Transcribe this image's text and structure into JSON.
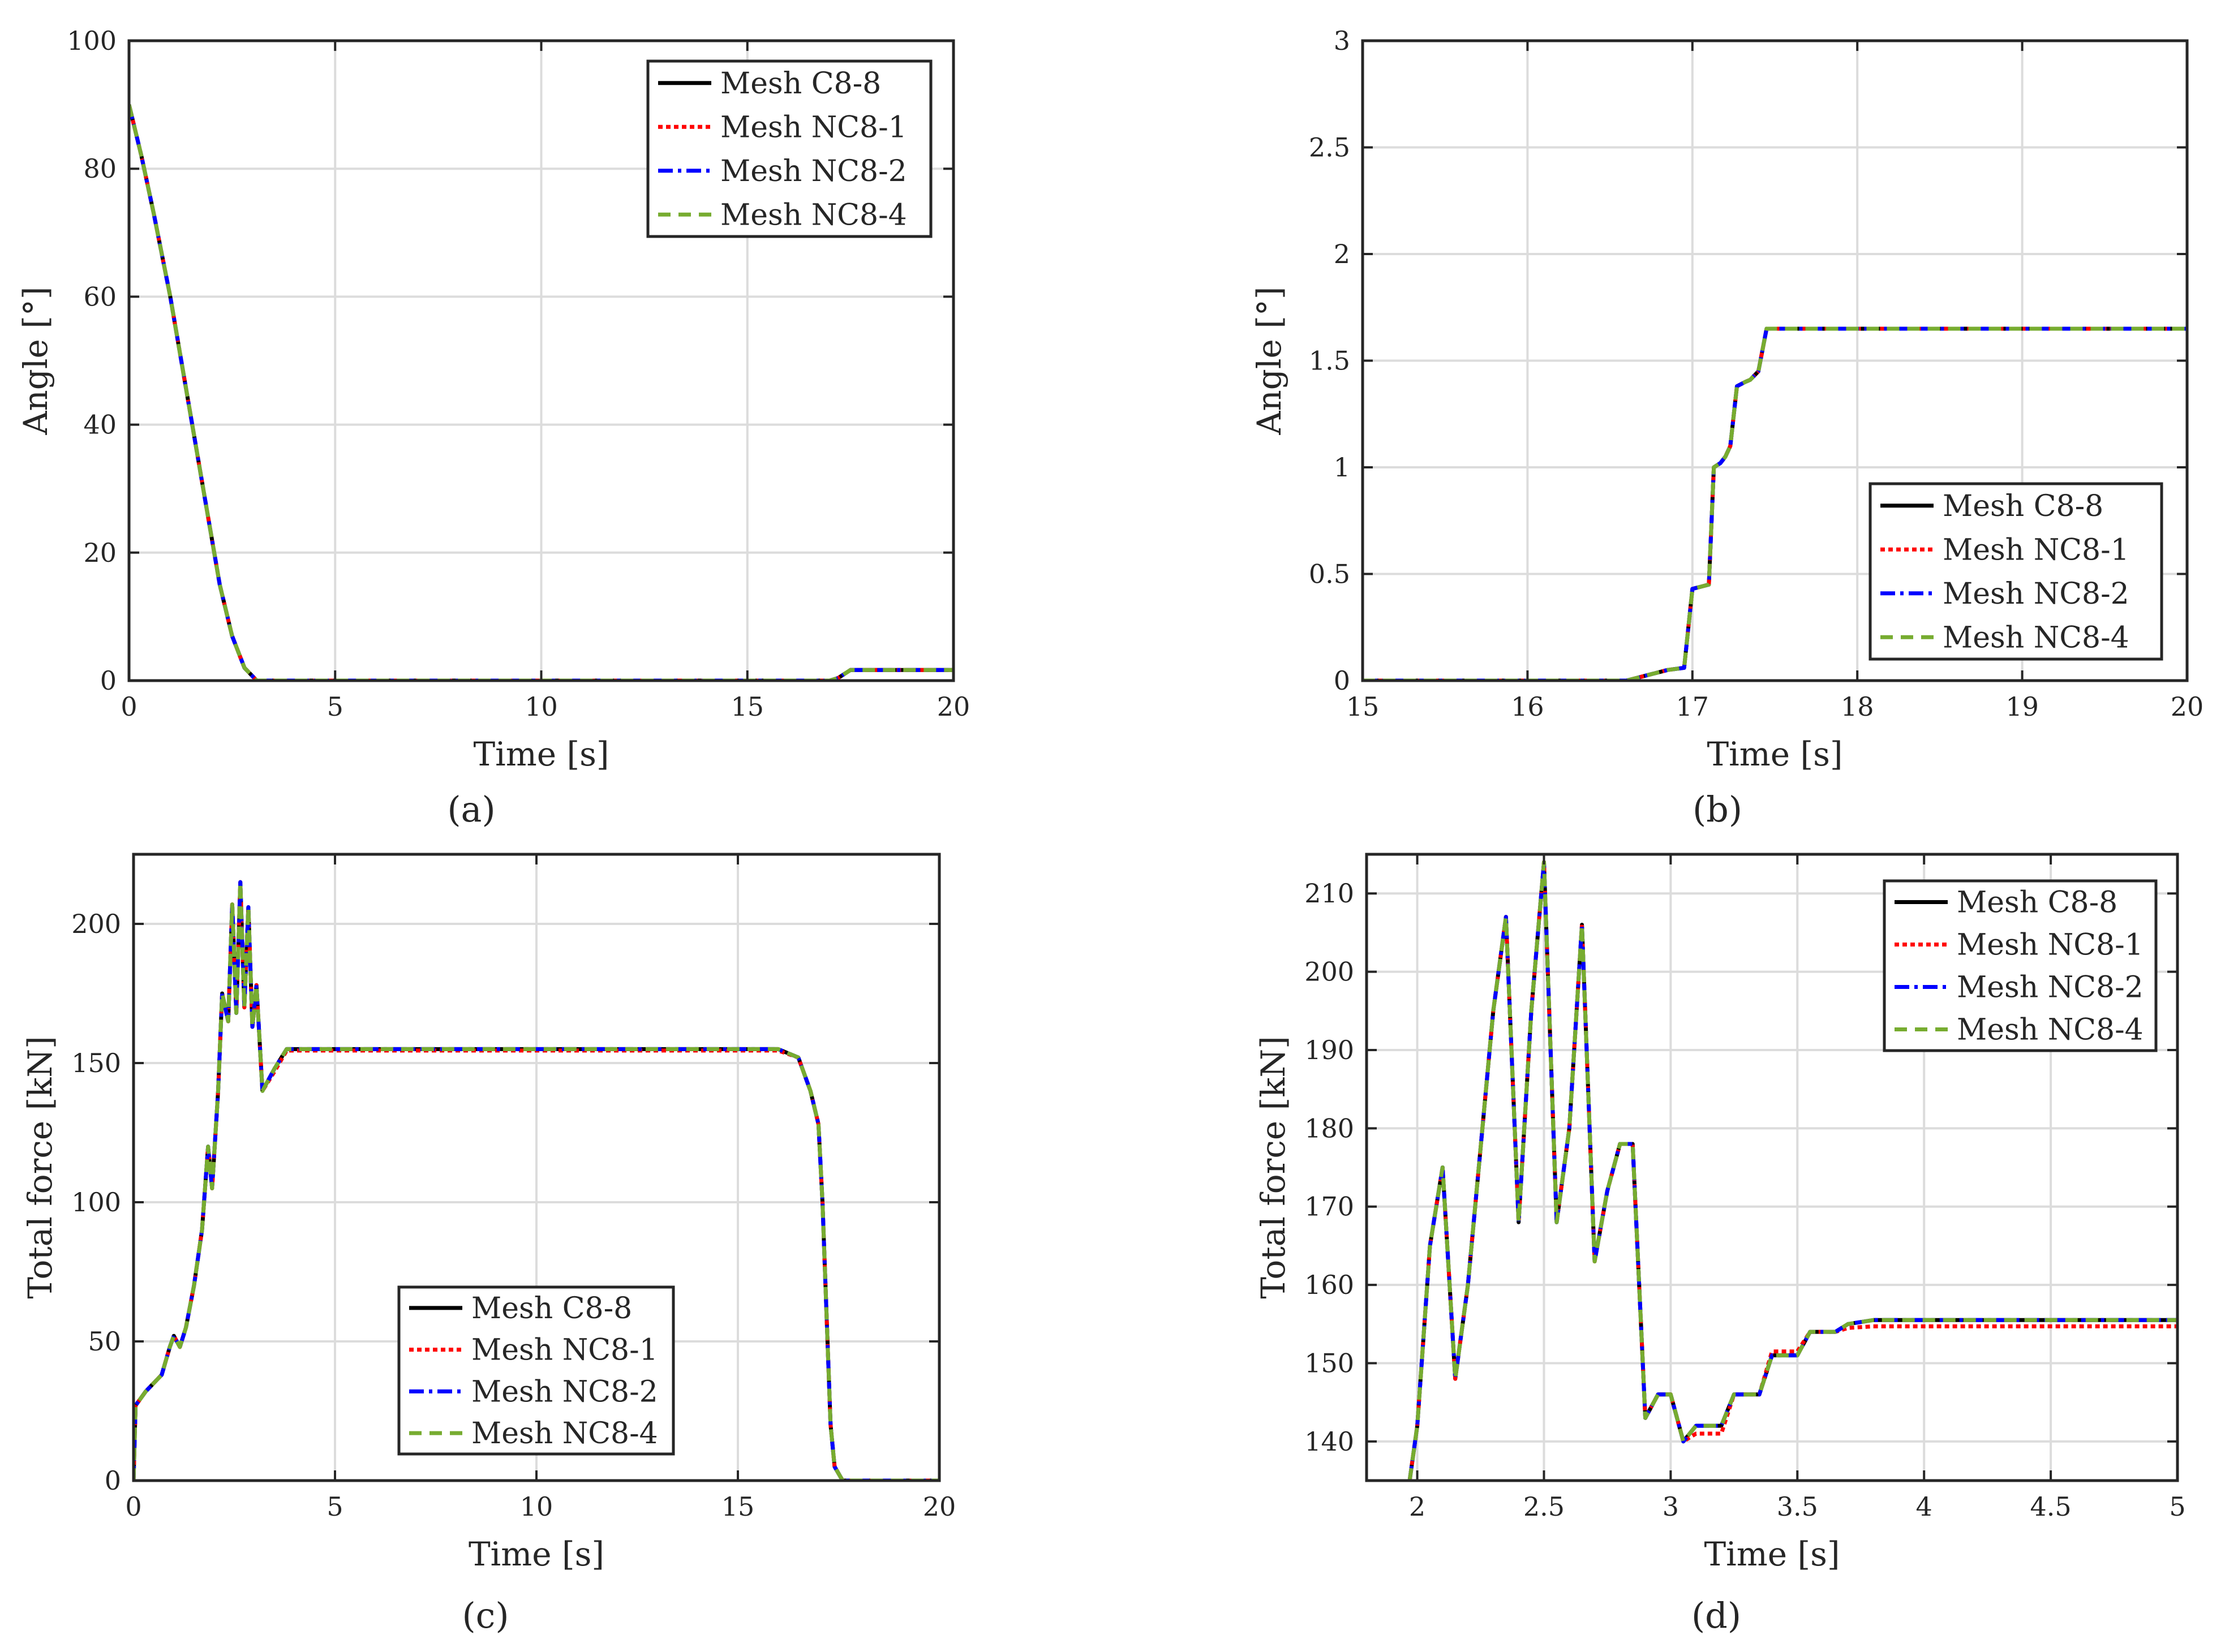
{
  "legend_entries": [
    "Mesh C8-8",
    "Mesh NC8-1",
    "Mesh NC8-2",
    "Mesh NC8-4"
  ],
  "series_colors": [
    "#000000",
    "#ff0000",
    "#0000ff",
    "#77ac30"
  ],
  "chart_data": [
    {
      "id": "a",
      "panel_label": "(a)",
      "type": "line",
      "xlabel": "Time [s]",
      "ylabel": "Angle [°]",
      "xlim": [
        0,
        20
      ],
      "ylim": [
        0,
        100
      ],
      "xticks": [
        0,
        5,
        10,
        15,
        20
      ],
      "yticks": [
        0,
        20,
        40,
        60,
        80,
        100
      ],
      "grid": true,
      "legend_position": "top-right",
      "series": [
        {
          "name": "Mesh C8-8",
          "x": [
            0,
            0.3,
            0.6,
            1.0,
            1.4,
            1.8,
            2.2,
            2.5,
            2.8,
            3.1,
            17.0,
            17.2,
            17.5,
            20
          ],
          "y": [
            90,
            82,
            73,
            60,
            45,
            30,
            15,
            7,
            2,
            0,
            0,
            0.4,
            1.65,
            1.65
          ]
        },
        {
          "name": "Mesh NC8-1",
          "x": [
            0,
            0.3,
            0.6,
            1.0,
            1.4,
            1.8,
            2.2,
            2.5,
            2.8,
            3.1,
            17.0,
            17.2,
            17.5,
            20
          ],
          "y": [
            90,
            82,
            73,
            60,
            45,
            30,
            15,
            7,
            2,
            0,
            0,
            0.4,
            1.65,
            1.65
          ]
        },
        {
          "name": "Mesh NC8-2",
          "x": [
            0,
            0.3,
            0.6,
            1.0,
            1.4,
            1.8,
            2.2,
            2.5,
            2.8,
            3.1,
            17.0,
            17.2,
            17.5,
            20
          ],
          "y": [
            90,
            82,
            73,
            60,
            45,
            30,
            15,
            7,
            2,
            0,
            0,
            0.4,
            1.65,
            1.65
          ]
        },
        {
          "name": "Mesh NC8-4",
          "x": [
            0,
            0.3,
            0.6,
            1.0,
            1.4,
            1.8,
            2.2,
            2.5,
            2.8,
            3.1,
            17.0,
            17.2,
            17.5,
            20
          ],
          "y": [
            90,
            82,
            73,
            60,
            45,
            30,
            15,
            7,
            2,
            0,
            0,
            0.4,
            1.65,
            1.65
          ]
        }
      ]
    },
    {
      "id": "b",
      "panel_label": "(b)",
      "type": "line",
      "xlabel": "Time [s]",
      "ylabel": "Angle [°]",
      "xlim": [
        15,
        20
      ],
      "ylim": [
        0,
        3
      ],
      "xticks": [
        15,
        16,
        17,
        18,
        19,
        20
      ],
      "yticks": [
        0,
        0.5,
        1,
        1.5,
        2,
        2.5,
        3
      ],
      "grid": true,
      "legend_position": "bottom-right",
      "series": [
        {
          "name": "Mesh C8-8",
          "x": [
            15,
            16.6,
            16.85,
            16.95,
            17.0,
            17.05,
            17.1,
            17.13,
            17.17,
            17.2,
            17.23,
            17.27,
            17.32,
            17.35,
            17.4,
            17.45,
            20
          ],
          "y": [
            0,
            0,
            0.05,
            0.06,
            0.43,
            0.44,
            0.45,
            1.0,
            1.02,
            1.05,
            1.1,
            1.38,
            1.4,
            1.41,
            1.45,
            1.65,
            1.65
          ]
        },
        {
          "name": "Mesh NC8-1",
          "x": [
            15,
            16.6,
            16.85,
            16.95,
            17.0,
            17.05,
            17.1,
            17.13,
            17.17,
            17.2,
            17.23,
            17.27,
            17.32,
            17.35,
            17.4,
            17.45,
            20
          ],
          "y": [
            0,
            0,
            0.05,
            0.06,
            0.43,
            0.44,
            0.45,
            1.0,
            1.02,
            1.05,
            1.1,
            1.38,
            1.4,
            1.41,
            1.45,
            1.65,
            1.65
          ]
        },
        {
          "name": "Mesh NC8-2",
          "x": [
            15,
            16.6,
            16.85,
            16.95,
            17.0,
            17.05,
            17.1,
            17.13,
            17.17,
            17.2,
            17.23,
            17.27,
            17.32,
            17.35,
            17.4,
            17.45,
            20
          ],
          "y": [
            0,
            0,
            0.05,
            0.06,
            0.43,
            0.44,
            0.45,
            1.0,
            1.02,
            1.05,
            1.1,
            1.38,
            1.4,
            1.41,
            1.45,
            1.65,
            1.65
          ]
        },
        {
          "name": "Mesh NC8-4",
          "x": [
            15,
            16.6,
            16.85,
            16.95,
            17.0,
            17.05,
            17.1,
            17.13,
            17.17,
            17.2,
            17.23,
            17.27,
            17.32,
            17.35,
            17.4,
            17.45,
            20
          ],
          "y": [
            0,
            0,
            0.05,
            0.06,
            0.43,
            0.44,
            0.45,
            1.0,
            1.02,
            1.05,
            1.1,
            1.38,
            1.4,
            1.41,
            1.45,
            1.65,
            1.65
          ]
        }
      ]
    },
    {
      "id": "c",
      "panel_label": "(c)",
      "type": "line",
      "xlabel": "Time [s]",
      "ylabel": "Total force [kN]",
      "xlim": [
        0,
        20
      ],
      "ylim": [
        0,
        225
      ],
      "xticks": [
        0,
        5,
        10,
        15,
        20
      ],
      "yticks": [
        0,
        50,
        100,
        150,
        200
      ],
      "grid": true,
      "legend_position": "bottom-center",
      "series": [
        {
          "name": "Mesh C8-8",
          "x": [
            0,
            0.05,
            0.3,
            0.7,
            0.9,
            1.0,
            1.15,
            1.3,
            1.5,
            1.7,
            1.85,
            1.95,
            2.1,
            2.2,
            2.35,
            2.45,
            2.55,
            2.65,
            2.75,
            2.85,
            2.95,
            3.05,
            3.2,
            3.5,
            3.8,
            4.5,
            16.0,
            16.5,
            16.8,
            17.0,
            17.1,
            17.2,
            17.3,
            17.4,
            17.6,
            20
          ],
          "y": [
            0,
            27,
            32,
            38,
            48,
            52,
            48,
            55,
            70,
            90,
            120,
            105,
            140,
            175,
            165,
            207,
            168,
            215,
            170,
            206,
            163,
            178,
            140,
            148,
            155,
            155,
            155,
            152,
            140,
            128,
            100,
            60,
            20,
            5,
            0,
            0
          ]
        },
        {
          "name": "Mesh NC8-1",
          "x": [
            0,
            0.05,
            0.3,
            0.7,
            0.9,
            1.0,
            1.15,
            1.3,
            1.5,
            1.7,
            1.85,
            1.95,
            2.1,
            2.2,
            2.35,
            2.45,
            2.55,
            2.65,
            2.75,
            2.85,
            2.95,
            3.05,
            3.2,
            3.5,
            3.8,
            4.5,
            16.0,
            16.5,
            16.8,
            17.0,
            17.1,
            17.2,
            17.3,
            17.4,
            17.6,
            20
          ],
          "y": [
            0,
            27,
            32,
            38,
            48,
            52,
            48,
            55,
            70,
            90,
            120,
            105,
            140,
            175,
            165,
            207,
            168,
            215,
            170,
            206,
            163,
            178,
            140,
            147,
            154.5,
            154.5,
            154.5,
            152,
            140,
            128,
            100,
            60,
            20,
            5,
            0,
            0
          ]
        },
        {
          "name": "Mesh NC8-2",
          "x": [
            0,
            0.05,
            0.3,
            0.7,
            0.9,
            1.0,
            1.15,
            1.3,
            1.5,
            1.7,
            1.85,
            1.95,
            2.1,
            2.2,
            2.35,
            2.45,
            2.55,
            2.65,
            2.75,
            2.85,
            2.95,
            3.05,
            3.2,
            3.5,
            3.8,
            4.5,
            16.0,
            16.5,
            16.8,
            17.0,
            17.1,
            17.2,
            17.3,
            17.4,
            17.6,
            20
          ],
          "y": [
            0,
            27,
            32,
            38,
            48,
            52,
            48,
            55,
            70,
            90,
            120,
            105,
            140,
            175,
            165,
            207,
            168,
            215,
            170,
            206,
            163,
            178,
            140,
            148,
            155,
            155,
            155,
            152,
            140,
            128,
            100,
            60,
            20,
            5,
            0,
            0
          ]
        },
        {
          "name": "Mesh NC8-4",
          "x": [
            0,
            0.05,
            0.3,
            0.7,
            0.9,
            1.0,
            1.15,
            1.3,
            1.5,
            1.7,
            1.85,
            1.95,
            2.1,
            2.2,
            2.35,
            2.45,
            2.55,
            2.65,
            2.75,
            2.85,
            2.95,
            3.05,
            3.2,
            3.5,
            3.8,
            4.5,
            16.0,
            16.5,
            16.8,
            17.0,
            17.1,
            17.2,
            17.3,
            17.4,
            17.6,
            20
          ],
          "y": [
            0,
            27,
            32,
            38,
            48,
            52,
            48,
            55,
            70,
            90,
            120,
            105,
            140,
            175,
            165,
            207,
            168,
            215,
            170,
            206,
            163,
            178,
            140,
            148,
            155,
            155,
            155,
            152,
            140,
            128,
            100,
            60,
            20,
            5,
            0,
            0
          ]
        }
      ]
    },
    {
      "id": "d",
      "panel_label": "(d)",
      "type": "line",
      "xlabel": "Time [s]",
      "ylabel": "Total force [kN]",
      "xlim": [
        1.8,
        5
      ],
      "ylim": [
        135,
        215
      ],
      "xticks": [
        2,
        2.5,
        3,
        3.5,
        4,
        4.5,
        5
      ],
      "yticks": [
        140,
        150,
        160,
        170,
        180,
        190,
        200,
        210
      ],
      "grid": true,
      "legend_position": "top-right",
      "series": [
        {
          "name": "Mesh C8-8",
          "x": [
            1.97,
            2.0,
            2.05,
            2.1,
            2.15,
            2.2,
            2.3,
            2.35,
            2.4,
            2.45,
            2.5,
            2.55,
            2.6,
            2.65,
            2.7,
            2.75,
            2.8,
            2.85,
            2.9,
            2.95,
            3.0,
            3.05,
            3.1,
            3.15,
            3.2,
            3.25,
            3.3,
            3.35,
            3.4,
            3.45,
            3.5,
            3.55,
            3.6,
            3.65,
            3.7,
            3.8,
            4.0,
            5.0
          ],
          "y": [
            135,
            142,
            165,
            175,
            148,
            160,
            195,
            207,
            168,
            195,
            214,
            168,
            180,
            206,
            163,
            172,
            178,
            178,
            143,
            146,
            146,
            140,
            142,
            142,
            142,
            146,
            146,
            146,
            151,
            151,
            151,
            154,
            154,
            154,
            155,
            155.5,
            155.5,
            155.5
          ]
        },
        {
          "name": "Mesh NC8-1",
          "x": [
            1.97,
            2.0,
            2.05,
            2.1,
            2.15,
            2.2,
            2.3,
            2.35,
            2.4,
            2.45,
            2.5,
            2.55,
            2.6,
            2.65,
            2.7,
            2.75,
            2.8,
            2.85,
            2.9,
            2.95,
            3.0,
            3.05,
            3.1,
            3.15,
            3.2,
            3.25,
            3.3,
            3.35,
            3.4,
            3.45,
            3.5,
            3.55,
            3.6,
            3.65,
            3.7,
            3.8,
            4.0,
            5.0
          ],
          "y": [
            135,
            142,
            165,
            175,
            148,
            160,
            195,
            207,
            168,
            195,
            214,
            168,
            180,
            206,
            163,
            172,
            178,
            178,
            143,
            146,
            146,
            140,
            141,
            141,
            141,
            146,
            146,
            146,
            151.5,
            151.5,
            151.5,
            154,
            154,
            154,
            154.5,
            154.7,
            154.7,
            154.7
          ]
        },
        {
          "name": "Mesh NC8-2",
          "x": [
            1.97,
            2.0,
            2.05,
            2.1,
            2.15,
            2.2,
            2.3,
            2.35,
            2.4,
            2.45,
            2.5,
            2.55,
            2.6,
            2.65,
            2.7,
            2.75,
            2.8,
            2.85,
            2.9,
            2.95,
            3.0,
            3.05,
            3.1,
            3.15,
            3.2,
            3.25,
            3.3,
            3.35,
            3.4,
            3.45,
            3.5,
            3.55,
            3.6,
            3.65,
            3.7,
            3.8,
            4.0,
            5.0
          ],
          "y": [
            135,
            142,
            165,
            175,
            148,
            160,
            195,
            207,
            168,
            195,
            214,
            168,
            180,
            206,
            163,
            172,
            178,
            178,
            143,
            146,
            146,
            140,
            142,
            142,
            142,
            146,
            146,
            146,
            151,
            151,
            151,
            154,
            154,
            154,
            155,
            155.5,
            155.5,
            155.5
          ]
        },
        {
          "name": "Mesh NC8-4",
          "x": [
            1.97,
            2.0,
            2.05,
            2.1,
            2.15,
            2.2,
            2.3,
            2.35,
            2.4,
            2.45,
            2.5,
            2.55,
            2.6,
            2.65,
            2.7,
            2.75,
            2.8,
            2.85,
            2.9,
            2.95,
            3.0,
            3.05,
            3.1,
            3.15,
            3.2,
            3.25,
            3.3,
            3.35,
            3.4,
            3.45,
            3.5,
            3.55,
            3.6,
            3.65,
            3.7,
            3.8,
            4.0,
            5.0
          ],
          "y": [
            135,
            142,
            165,
            175,
            148,
            160,
            195,
            207,
            168,
            195,
            214,
            168,
            180,
            206,
            163,
            172,
            178,
            178,
            143,
            146,
            146,
            140,
            142,
            142,
            142,
            146,
            146,
            146,
            151,
            151,
            151,
            154,
            154,
            154,
            155,
            155.5,
            155.5,
            155.5
          ]
        }
      ]
    }
  ]
}
